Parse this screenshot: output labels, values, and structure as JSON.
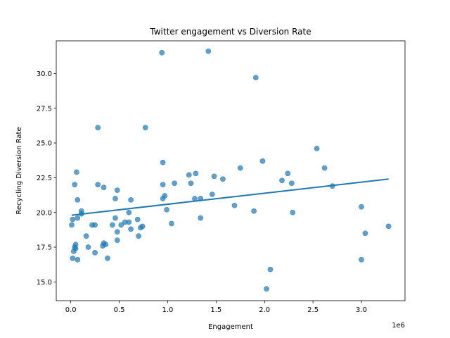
{
  "chart_data": {
    "type": "scatter",
    "title": "Twitter engagement vs Diversion Rate",
    "xlabel": "Engagement",
    "ylabel": "Recycling Diversion Rate",
    "x_offset_label": "1e6",
    "xlim": [
      -150000,
      3450000
    ],
    "ylim": [
      13.65,
      32.35
    ],
    "x_ticks": [
      0,
      500000,
      1000000,
      1500000,
      2000000,
      2500000,
      3000000
    ],
    "x_tick_labels": [
      "0.0",
      "0.5",
      "1.0",
      "1.5",
      "2.0",
      "2.5",
      "3.0"
    ],
    "y_ticks": [
      15.0,
      17.5,
      20.0,
      22.5,
      25.0,
      27.5,
      30.0
    ],
    "y_tick_labels": [
      "15.0",
      "17.5",
      "20.0",
      "22.5",
      "25.0",
      "27.5",
      "30.0"
    ],
    "grid": false,
    "point_color": "#1f77b4",
    "point_alpha": 0.7,
    "points": [
      [
        940000,
        31.5
      ],
      [
        1420000,
        31.6
      ],
      [
        1910000,
        29.7
      ],
      [
        280000,
        26.1
      ],
      [
        770000,
        26.1
      ],
      [
        2540000,
        24.6
      ],
      [
        950000,
        23.6
      ],
      [
        1980000,
        23.7
      ],
      [
        1750000,
        23.2
      ],
      [
        2620000,
        23.2
      ],
      [
        60000,
        22.9
      ],
      [
        2240000,
        22.8
      ],
      [
        1220000,
        22.7
      ],
      [
        1290000,
        22.8
      ],
      [
        1480000,
        22.6
      ],
      [
        1570000,
        22.4
      ],
      [
        2180000,
        22.3
      ],
      [
        1070000,
        22.1
      ],
      [
        1240000,
        22.1
      ],
      [
        2280000,
        22.1
      ],
      [
        40000,
        22.0
      ],
      [
        280000,
        22.0
      ],
      [
        950000,
        22.0
      ],
      [
        2700000,
        21.9
      ],
      [
        340000,
        21.8
      ],
      [
        480000,
        21.6
      ],
      [
        1460000,
        21.3
      ],
      [
        970000,
        21.2
      ],
      [
        460000,
        21.0
      ],
      [
        620000,
        20.9
      ],
      [
        1280000,
        21.0
      ],
      [
        1340000,
        21.0
      ],
      [
        950000,
        21.0
      ],
      [
        70000,
        20.9
      ],
      [
        1690000,
        20.5
      ],
      [
        3000000,
        20.4
      ],
      [
        990000,
        20.2
      ],
      [
        110000,
        20.1
      ],
      [
        110000,
        19.9
      ],
      [
        600000,
        20.0
      ],
      [
        1890000,
        20.1
      ],
      [
        2290000,
        20.0
      ],
      [
        20000,
        19.5
      ],
      [
        70000,
        19.6
      ],
      [
        460000,
        19.6
      ],
      [
        690000,
        19.5
      ],
      [
        1340000,
        19.6
      ],
      [
        10000,
        19.1
      ],
      [
        220000,
        19.1
      ],
      [
        250000,
        19.1
      ],
      [
        430000,
        19.1
      ],
      [
        520000,
        19.1
      ],
      [
        560000,
        19.3
      ],
      [
        600000,
        19.3
      ],
      [
        720000,
        18.9
      ],
      [
        740000,
        19.0
      ],
      [
        1040000,
        19.2
      ],
      [
        3280000,
        19.0
      ],
      [
        620000,
        18.8
      ],
      [
        480000,
        18.6
      ],
      [
        3040000,
        18.5
      ],
      [
        160000,
        18.3
      ],
      [
        700000,
        18.3
      ],
      [
        480000,
        18.0
      ],
      [
        50000,
        17.7
      ],
      [
        340000,
        17.8
      ],
      [
        360000,
        17.7
      ],
      [
        330000,
        17.6
      ],
      [
        40000,
        17.5
      ],
      [
        50000,
        17.4
      ],
      [
        180000,
        17.5
      ],
      [
        30000,
        17.2
      ],
      [
        250000,
        17.1
      ],
      [
        20000,
        16.7
      ],
      [
        70000,
        16.6
      ],
      [
        380000,
        16.7
      ],
      [
        3000000,
        16.6
      ],
      [
        2060000,
        15.9
      ],
      [
        2020000,
        14.5
      ]
    ],
    "trend_line": {
      "x": [
        10000,
        3280000
      ],
      "y": [
        19.8,
        22.4
      ],
      "color": "#1f77b4"
    }
  }
}
